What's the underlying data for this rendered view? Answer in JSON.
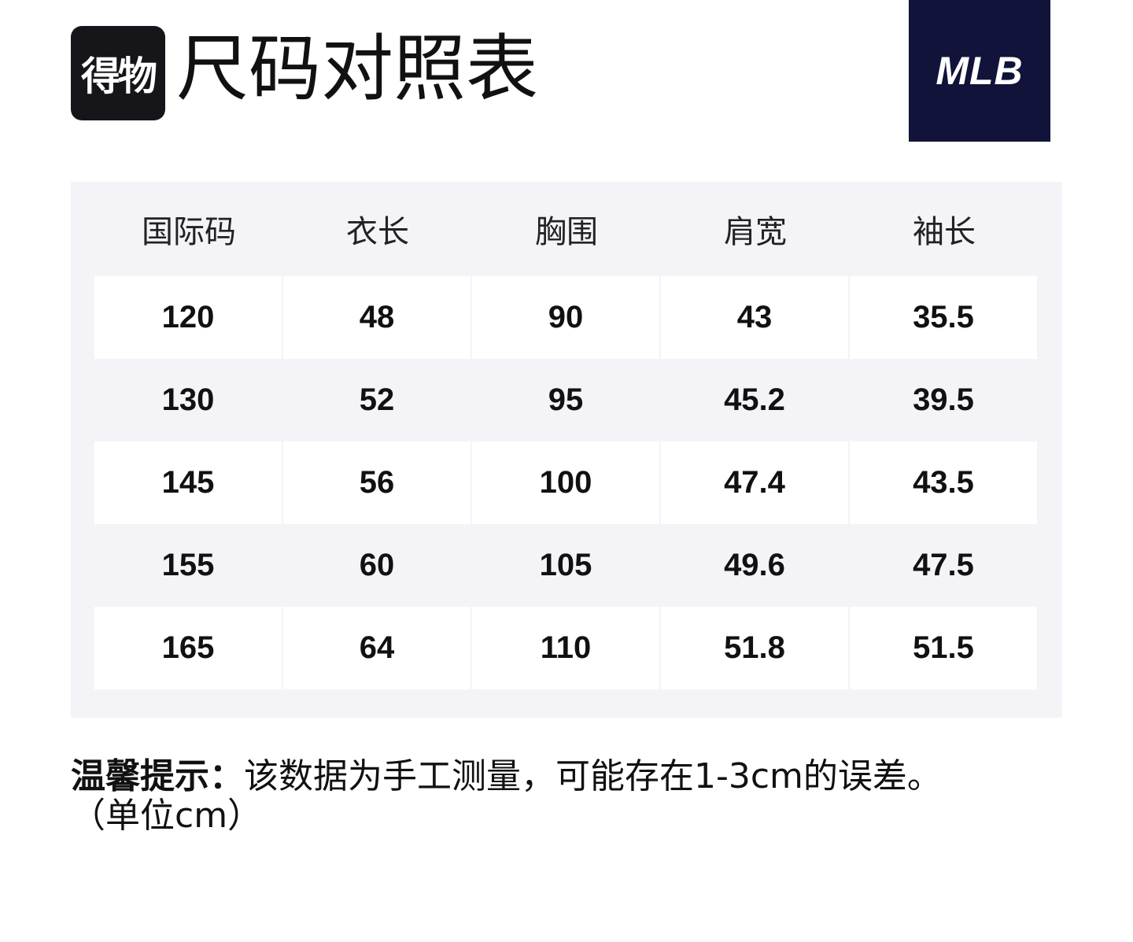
{
  "header": {
    "app_logo_text": "得物",
    "title": "尺码对照表",
    "brand_logo_text": "MLB"
  },
  "table": {
    "columns": [
      "国际码",
      "衣长",
      "胸围",
      "肩宽",
      "袖长"
    ],
    "rows": [
      [
        "120",
        "48",
        "90",
        "43",
        "35.5"
      ],
      [
        "130",
        "52",
        "95",
        "45.2",
        "39.5"
      ],
      [
        "145",
        "56",
        "100",
        "47.4",
        "43.5"
      ],
      [
        "155",
        "60",
        "105",
        "49.6",
        "47.5"
      ],
      [
        "165",
        "64",
        "110",
        "51.8",
        "51.5"
      ]
    ]
  },
  "note": {
    "label": "温馨提示：",
    "text": "该数据为手工测量，可能存在1-3cm的误差。",
    "unit": "（单位cm）"
  }
}
